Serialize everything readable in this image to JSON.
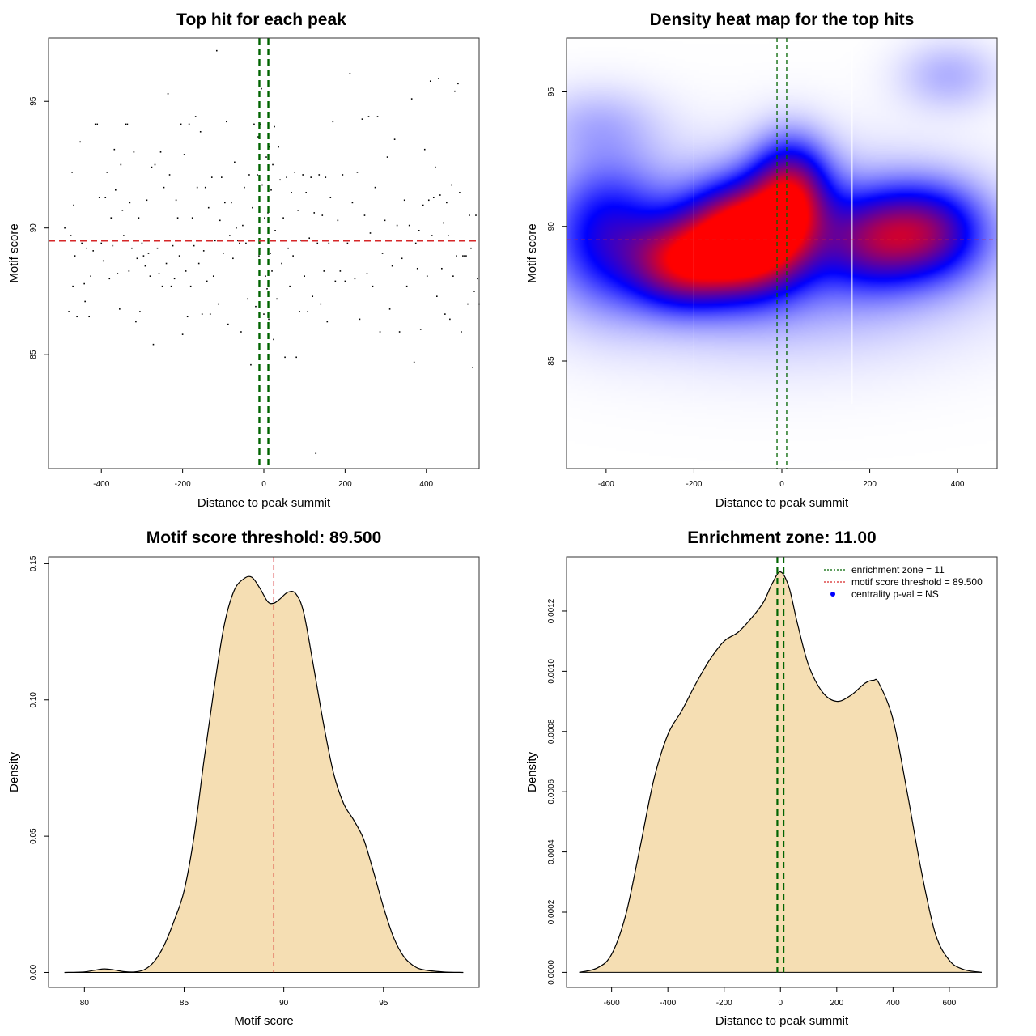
{
  "chart_data": [
    {
      "type": "scatter",
      "title": "Top hit for each peak",
      "xlabel": "Distance to peak summit",
      "ylabel": "Motif score",
      "xlim": [
        -530,
        530
      ],
      "ylim": [
        80.5,
        97.5
      ],
      "xticks": [
        -400,
        -200,
        0,
        200,
        400
      ],
      "yticks": [
        85,
        90,
        95
      ],
      "grid": false,
      "hlines": [
        {
          "y": 89.5,
          "color": "#d62728",
          "style": "dashed"
        }
      ],
      "vlines": [
        {
          "x": -11,
          "color": "#006400",
          "style": "dashed"
        },
        {
          "x": 11,
          "color": "#006400",
          "style": "dashed"
        }
      ],
      "points": [
        [
          -490,
          90.0
        ],
        [
          -480,
          86.7
        ],
        [
          -475,
          89.7
        ],
        [
          -472,
          92.2
        ],
        [
          -470,
          87.7
        ],
        [
          -468,
          90.9
        ],
        [
          -465,
          88.9
        ],
        [
          -460,
          86.5
        ],
        [
          -452,
          93.4
        ],
        [
          -448,
          89.4
        ],
        [
          -442,
          87.8
        ],
        [
          -440,
          87.1
        ],
        [
          -436,
          89.2
        ],
        [
          -430,
          86.5
        ],
        [
          -426,
          88.1
        ],
        [
          -420,
          89.1
        ],
        [
          -415,
          94.1
        ],
        [
          -410,
          94.1
        ],
        [
          -405,
          91.2
        ],
        [
          -400,
          89.4
        ],
        [
          -395,
          88.7
        ],
        [
          -390,
          91.2
        ],
        [
          -386,
          92.2
        ],
        [
          -380,
          88.0
        ],
        [
          -376,
          90.4
        ],
        [
          -372,
          89.3
        ],
        [
          -368,
          93.1
        ],
        [
          -365,
          91.5
        ],
        [
          -360,
          88.2
        ],
        [
          -355,
          86.8
        ],
        [
          -352,
          92.5
        ],
        [
          -348,
          90.7
        ],
        [
          -345,
          89.7
        ],
        [
          -340,
          94.1
        ],
        [
          -336,
          94.1
        ],
        [
          -332,
          88.3
        ],
        [
          -330,
          91.0
        ],
        [
          -325,
          89.2
        ],
        [
          -320,
          93.0
        ],
        [
          -315,
          86.3
        ],
        [
          -312,
          88.8
        ],
        [
          -308,
          90.4
        ],
        [
          -305,
          86.7
        ],
        [
          -300,
          89.4
        ],
        [
          -296,
          88.9
        ],
        [
          -292,
          88.5
        ],
        [
          -288,
          91.1
        ],
        [
          -284,
          89.0
        ],
        [
          -280,
          88.1
        ],
        [
          -276,
          92.4
        ],
        [
          -272,
          85.4
        ],
        [
          -268,
          92.5
        ],
        [
          -262,
          89.2
        ],
        [
          -258,
          88.2
        ],
        [
          -254,
          93.0
        ],
        [
          -250,
          87.7
        ],
        [
          -246,
          91.6
        ],
        [
          -240,
          88.6
        ],
        [
          -236,
          95.3
        ],
        [
          -232,
          92.1
        ],
        [
          -228,
          87.7
        ],
        [
          -224,
          89.3
        ],
        [
          -220,
          88.0
        ],
        [
          -216,
          91.1
        ],
        [
          -212,
          90.4
        ],
        [
          -208,
          88.9
        ],
        [
          -204,
          94.1
        ],
        [
          -200,
          85.8
        ],
        [
          -196,
          92.9
        ],
        [
          -192,
          88.3
        ],
        [
          -188,
          86.5
        ],
        [
          -184,
          94.1
        ],
        [
          -180,
          87.7
        ],
        [
          -176,
          90.4
        ],
        [
          -172,
          89.3
        ],
        [
          -168,
          94.4
        ],
        [
          -164,
          91.6
        ],
        [
          -160,
          88.6
        ],
        [
          -156,
          93.8
        ],
        [
          -152,
          86.6
        ],
        [
          -148,
          89.1
        ],
        [
          -144,
          91.6
        ],
        [
          -140,
          87.9
        ],
        [
          -136,
          90.8
        ],
        [
          -132,
          86.6
        ],
        [
          -128,
          92.0
        ],
        [
          -124,
          88.1
        ],
        [
          -120,
          89.5
        ],
        [
          -116,
          97.0
        ],
        [
          -112,
          87.0
        ],
        [
          -108,
          90.3
        ],
        [
          -104,
          92.0
        ],
        [
          -100,
          89.0
        ],
        [
          -96,
          91.0
        ],
        [
          -92,
          94.2
        ],
        [
          -88,
          86.2
        ],
        [
          -84,
          89.7
        ],
        [
          -80,
          91.0
        ],
        [
          -76,
          88.8
        ],
        [
          -72,
          92.6
        ],
        [
          -68,
          90.0
        ],
        [
          -64,
          89.5
        ],
        [
          -60,
          89.4
        ],
        [
          -56,
          85.9
        ],
        [
          -52,
          90.1
        ],
        [
          -48,
          91.6
        ],
        [
          -44,
          89.4
        ],
        [
          -40,
          87.2
        ],
        [
          -36,
          92.1
        ],
        [
          -32,
          84.6
        ],
        [
          -28,
          90.8
        ],
        [
          -24,
          94.1
        ],
        [
          -20,
          86.9
        ],
        [
          -16,
          92.1
        ],
        [
          -12,
          88.9
        ],
        [
          -8,
          94.1
        ],
        [
          -4,
          91.7
        ],
        [
          0,
          86.6
        ],
        [
          -6,
          95.5
        ],
        [
          -10,
          89.2
        ],
        [
          -14,
          93.6
        ],
        [
          2,
          90.4
        ],
        [
          4,
          88.1
        ],
        [
          6,
          92.8
        ],
        [
          8,
          87.6
        ],
        [
          10,
          90.6
        ],
        [
          12,
          86.4
        ],
        [
          14,
          93.2
        ],
        [
          16,
          89.0
        ],
        [
          18,
          91.5
        ],
        [
          20,
          88.3
        ],
        [
          22,
          92.5
        ],
        [
          24,
          85.6
        ],
        [
          26,
          94.0
        ],
        [
          28,
          89.9
        ],
        [
          32,
          87.2
        ],
        [
          36,
          93.2
        ],
        [
          40,
          91.9
        ],
        [
          44,
          88.6
        ],
        [
          48,
          90.4
        ],
        [
          52,
          84.9
        ],
        [
          56,
          92.0
        ],
        [
          60,
          89.2
        ],
        [
          64,
          87.7
        ],
        [
          68,
          91.4
        ],
        [
          72,
          88.9
        ],
        [
          76,
          92.2
        ],
        [
          80,
          84.9
        ],
        [
          84,
          90.7
        ],
        [
          88,
          86.7
        ],
        [
          92,
          89.5
        ],
        [
          96,
          92.1
        ],
        [
          100,
          88.1
        ],
        [
          104,
          91.4
        ],
        [
          108,
          86.7
        ],
        [
          112,
          89.6
        ],
        [
          116,
          92.0
        ],
        [
          120,
          87.3
        ],
        [
          124,
          90.6
        ],
        [
          128,
          81.1
        ],
        [
          132,
          89.4
        ],
        [
          136,
          92.1
        ],
        [
          140,
          87.0
        ],
        [
          144,
          90.5
        ],
        [
          148,
          88.3
        ],
        [
          152,
          92.0
        ],
        [
          156,
          86.3
        ],
        [
          160,
          89.4
        ],
        [
          164,
          91.2
        ],
        [
          170,
          94.2
        ],
        [
          176,
          87.9
        ],
        [
          182,
          90.3
        ],
        [
          188,
          88.3
        ],
        [
          194,
          92.1
        ],
        [
          200,
          87.9
        ],
        [
          206,
          89.4
        ],
        [
          212,
          96.1
        ],
        [
          218,
          91.0
        ],
        [
          224,
          88.0
        ],
        [
          230,
          92.2
        ],
        [
          236,
          86.4
        ],
        [
          242,
          94.3
        ],
        [
          248,
          90.5
        ],
        [
          254,
          88.2
        ],
        [
          258,
          94.4
        ],
        [
          262,
          89.8
        ],
        [
          268,
          87.7
        ],
        [
          274,
          91.6
        ],
        [
          280,
          94.4
        ],
        [
          286,
          85.9
        ],
        [
          292,
          89.0
        ],
        [
          298,
          90.3
        ],
        [
          304,
          92.8
        ],
        [
          310,
          86.8
        ],
        [
          316,
          88.5
        ],
        [
          322,
          93.5
        ],
        [
          328,
          90.1
        ],
        [
          334,
          85.9
        ],
        [
          340,
          88.8
        ],
        [
          346,
          91.1
        ],
        [
          352,
          87.7
        ],
        [
          358,
          90.1
        ],
        [
          364,
          95.1
        ],
        [
          370,
          84.7
        ],
        [
          374,
          89.4
        ],
        [
          378,
          88.4
        ],
        [
          382,
          89.9
        ],
        [
          386,
          86.0
        ],
        [
          392,
          90.9
        ],
        [
          396,
          93.1
        ],
        [
          402,
          88.1
        ],
        [
          406,
          91.1
        ],
        [
          410,
          95.8
        ],
        [
          414,
          89.7
        ],
        [
          418,
          91.2
        ],
        [
          422,
          92.4
        ],
        [
          426,
          87.3
        ],
        [
          430,
          95.9
        ],
        [
          434,
          91.3
        ],
        [
          438,
          88.4
        ],
        [
          442,
          90.2
        ],
        [
          446,
          86.6
        ],
        [
          450,
          91.0
        ],
        [
          454,
          89.7
        ],
        [
          458,
          86.4
        ],
        [
          462,
          91.7
        ],
        [
          466,
          88.1
        ],
        [
          470,
          95.4
        ],
        [
          474,
          88.9
        ],
        [
          478,
          95.7
        ],
        [
          482,
          91.4
        ],
        [
          486,
          85.9
        ],
        [
          490,
          88.9
        ],
        [
          494,
          88.9
        ],
        [
          498,
          88.9
        ],
        [
          502,
          87.0
        ],
        [
          506,
          90.5
        ],
        [
          510,
          89.2
        ],
        [
          514,
          84.5
        ],
        [
          518,
          87.5
        ],
        [
          522,
          90.5
        ],
        [
          526,
          88.0
        ],
        [
          530,
          87.0
        ]
      ]
    },
    {
      "type": "heatmap",
      "title": "Density heat map for the top hits",
      "xlabel": "Distance to peak summit",
      "ylabel": "Motif score",
      "xlim": [
        -490,
        490
      ],
      "ylim": [
        81,
        97
      ],
      "xticks": [
        -400,
        -200,
        0,
        200,
        400
      ],
      "yticks": [
        85,
        90,
        95
      ],
      "colors": {
        "low": "#ffffff",
        "mid": "#0000ff",
        "high": "#ff0000"
      },
      "hlines": [
        {
          "y": 89.5,
          "color": "#d62728",
          "style": "dashed"
        }
      ],
      "vlines": [
        {
          "x": -11,
          "color": "#006400",
          "style": "dashed"
        },
        {
          "x": 11,
          "color": "#006400",
          "style": "dashed"
        }
      ],
      "white_vlines": [
        -200,
        160
      ],
      "density_kernels": [
        {
          "x": -80,
          "y": 89.5,
          "sx": 90,
          "sy": 1.3,
          "w": 1.0
        },
        {
          "x": -230,
          "y": 88.6,
          "sx": 80,
          "sy": 1.1,
          "w": 0.55
        },
        {
          "x": 20,
          "y": 91.3,
          "sx": 60,
          "sy": 1.3,
          "w": 0.6
        },
        {
          "x": 330,
          "y": 89.8,
          "sx": 90,
          "sy": 1.2,
          "w": 0.5
        },
        {
          "x": 200,
          "y": 89.5,
          "sx": 80,
          "sy": 1.2,
          "w": 0.35
        },
        {
          "x": -400,
          "y": 89.8,
          "sx": 90,
          "sy": 1.8,
          "w": 0.35
        },
        {
          "x": 0,
          "y": 89.0,
          "sx": 320,
          "sy": 2.3,
          "w": 0.22
        },
        {
          "x": 380,
          "y": 95.6,
          "sx": 80,
          "sy": 0.9,
          "w": 0.12
        },
        {
          "x": -420,
          "y": 93.8,
          "sx": 100,
          "sy": 1.0,
          "w": 0.1
        }
      ]
    },
    {
      "type": "area",
      "title": "Motif score threshold: 89.500",
      "xlabel": "Motif score",
      "ylabel": "Density",
      "xlim": [
        78.2,
        99.8
      ],
      "ylim": [
        -0.0055,
        0.1525
      ],
      "xticks": [
        80,
        85,
        90,
        95
      ],
      "yticks": [
        0.0,
        0.05,
        0.1,
        0.15
      ],
      "ytick_labels": [
        "0.00",
        "0.05",
        "0.10",
        "0.15"
      ],
      "fill": "#f5deb3",
      "vlines": [
        {
          "x": 89.5,
          "color": "#d62728",
          "style": "dashed"
        }
      ],
      "x": [
        79.0,
        80.0,
        80.5,
        81.0,
        81.5,
        82.0,
        82.5,
        83.0,
        83.5,
        84.0,
        84.5,
        85.0,
        85.5,
        86.0,
        86.5,
        87.0,
        87.5,
        88.0,
        88.4,
        88.8,
        89.2,
        89.5,
        89.8,
        90.2,
        90.6,
        91.0,
        91.5,
        92.0,
        92.5,
        93.0,
        93.5,
        94.0,
        94.5,
        95.0,
        95.5,
        96.0,
        96.5,
        97.0,
        98.0,
        99.0
      ],
      "values": [
        0.0,
        0.0002,
        0.0008,
        0.0013,
        0.0009,
        0.0003,
        0.0002,
        0.001,
        0.004,
        0.01,
        0.019,
        0.03,
        0.05,
        0.078,
        0.104,
        0.127,
        0.14,
        0.1445,
        0.145,
        0.141,
        0.136,
        0.1355,
        0.137,
        0.1395,
        0.139,
        0.132,
        0.112,
        0.091,
        0.073,
        0.062,
        0.056,
        0.049,
        0.037,
        0.024,
        0.013,
        0.006,
        0.0025,
        0.001,
        0.0002,
        0.0
      ]
    },
    {
      "type": "area",
      "title": "Enrichment zone: 11.00",
      "xlabel": "Distance to peak summit",
      "ylabel": "Density",
      "xlim": [
        -760,
        770
      ],
      "ylim": [
        -5e-05,
        0.00138
      ],
      "xticks": [
        -600,
        -400,
        -200,
        0,
        200,
        400,
        600
      ],
      "yticks": [
        0.0,
        0.0002,
        0.0004,
        0.0006,
        0.0008,
        0.001,
        0.0012
      ],
      "ytick_labels": [
        "0.0000",
        "0.0002",
        "0.0004",
        "0.0006",
        "0.0008",
        "0.0010",
        "0.0012"
      ],
      "fill": "#f5deb3",
      "vlines": [
        {
          "x": -11,
          "color": "#006400",
          "style": "dashed"
        },
        {
          "x": 11,
          "color": "#006400",
          "style": "dashed"
        }
      ],
      "x": [
        -715,
        -650,
        -600,
        -550,
        -500,
        -450,
        -400,
        -350,
        -300,
        -250,
        -200,
        -150,
        -100,
        -60,
        -30,
        0,
        30,
        60,
        100,
        150,
        200,
        250,
        300,
        330,
        350,
        400,
        450,
        500,
        550,
        600,
        650,
        715
      ],
      "values": [
        0.0,
        1.5e-05,
        6e-05,
        0.00019,
        0.00041,
        0.00064,
        0.00079,
        0.00087,
        0.00096,
        0.00104,
        0.0011,
        0.00113,
        0.00118,
        0.00123,
        0.00129,
        0.00133,
        0.00128,
        0.00116,
        0.00102,
        0.00093,
        0.0009,
        0.00092,
        0.00096,
        0.00097,
        0.00096,
        0.00084,
        0.0006,
        0.00034,
        0.00013,
        4e-05,
        1e-05,
        0.0
      ],
      "legend": {
        "position": "top-right",
        "entries": [
          {
            "label": "enrichment zone = 11",
            "color": "#006400",
            "marker": "dotted-line"
          },
          {
            "label": "motif score threshold = 89.500",
            "color": "#d62728",
            "marker": "dotted-line"
          },
          {
            "label": "centrality p-val = NS",
            "color": "#0000ff",
            "marker": "point"
          }
        ]
      }
    }
  ]
}
